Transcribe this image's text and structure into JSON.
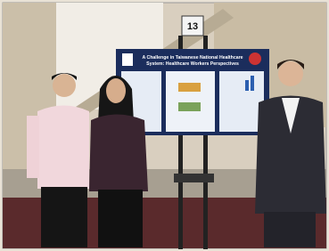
{
  "sign": {
    "number": "13"
  },
  "poster": {
    "title_lines": [
      "A Challenge in Taiwanese National Healthcare",
      "System: Healthcare Workers Perspectives"
    ]
  }
}
